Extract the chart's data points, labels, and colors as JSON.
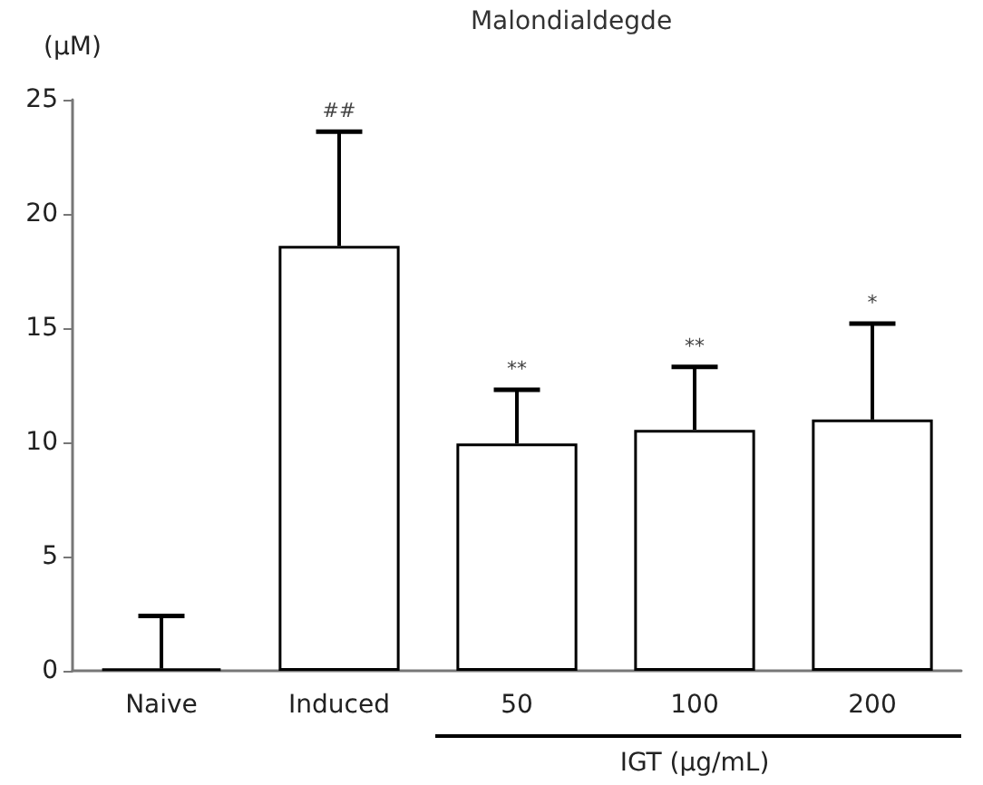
{
  "chart_data": {
    "type": "bar",
    "title": "Malondialdegde",
    "ylabel": "(μM)",
    "xlabel": "IGT (μg/mL)",
    "categories": [
      "Naive",
      "Induced",
      "50",
      "100",
      "200"
    ],
    "values": [
      0.1,
      18.6,
      9.95,
      10.55,
      11.0
    ],
    "errors": [
      [
        0.1,
        2.4
      ],
      [
        18.6,
        23.6
      ],
      [
        9.95,
        12.3
      ],
      [
        10.55,
        13.3
      ],
      [
        11.0,
        15.2
      ]
    ],
    "colors": [
      "#000000",
      "#ffffff",
      "#ffffff",
      "#ffffff",
      "#ffffff"
    ],
    "ylim": [
      0,
      25
    ],
    "yticks": [
      0,
      5,
      10,
      15,
      20,
      25
    ],
    "grid": false,
    "annotations": [
      "##",
      "**",
      "**",
      "*"
    ]
  }
}
